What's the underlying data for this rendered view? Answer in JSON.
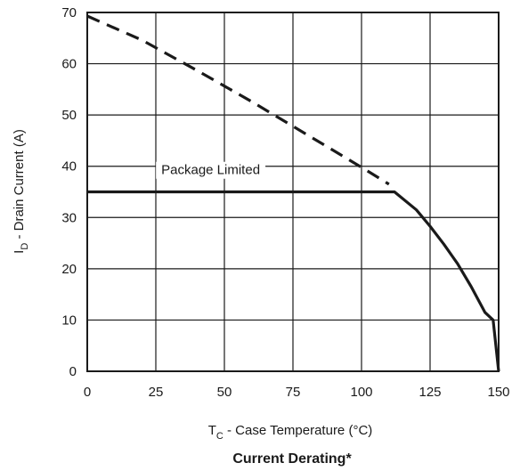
{
  "chart_data": {
    "type": "line",
    "title": "Current Derating*",
    "xlabel": {
      "main": "T",
      "sub": "C",
      "rest": " - Case Temperature (°C)"
    },
    "ylabel": {
      "main": "I",
      "sub": "D",
      "rest": " - Drain Current (A)"
    },
    "xlim": [
      0,
      150
    ],
    "ylim": [
      0,
      70
    ],
    "xticks": [
      0,
      25,
      50,
      75,
      100,
      125,
      150
    ],
    "yticks": [
      0,
      10,
      20,
      30,
      40,
      50,
      60,
      70
    ],
    "grid": true,
    "series": [
      {
        "style": "dashed",
        "x": [
          0,
          20,
          40,
          60,
          80,
          100,
          110
        ],
        "y": [
          69.3,
          64.6,
          58.7,
          52.6,
          46.2,
          39.8,
          36.5
        ]
      },
      {
        "style": "solid",
        "x": [
          0,
          110,
          112,
          120,
          125,
          130,
          135,
          140,
          145,
          148,
          150
        ],
        "y": [
          35,
          35,
          35,
          31.5,
          28.3,
          24.8,
          21,
          16.5,
          11.5,
          10,
          0
        ]
      }
    ],
    "annotations": [
      {
        "text": "Package Limited",
        "x": 45,
        "y": 39.3
      }
    ]
  }
}
